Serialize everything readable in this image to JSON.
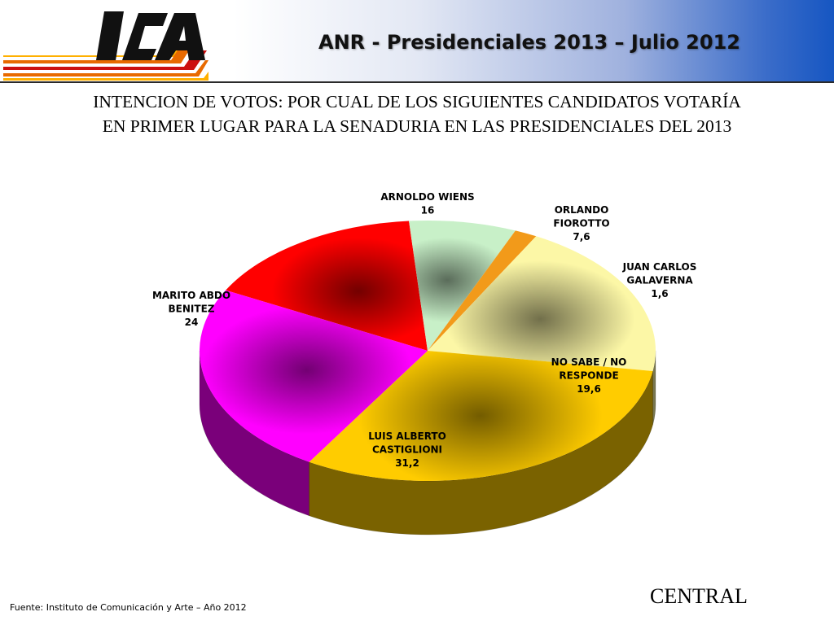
{
  "header": {
    "title": "ANR - Presidenciales 2013 – Julio 2012"
  },
  "subtitle": {
    "line1": "INTENCION DE VOTOS: POR CUAL DE LOS SIGUIENTES CANDIDATOS VOTARÍA",
    "line2": "EN PRIMER LUGAR PARA LA SENADURIA EN LAS PRESIDENCIALES DEL 2013"
  },
  "logo": {
    "text": "ICA"
  },
  "chart_data": {
    "type": "pie",
    "title": "",
    "slices": [
      {
        "label_lines": [
          "ARNOLDO WIENS"
        ],
        "value": 16,
        "value_text": "16",
        "color": "#ff0000"
      },
      {
        "label_lines": [
          "ORLANDO",
          "FIOROTTO"
        ],
        "value": 7.6,
        "value_text": "7,6",
        "color": "#c8f0c8"
      },
      {
        "label_lines": [
          "JUAN CARLOS",
          "GALAVERNA"
        ],
        "value": 1.6,
        "value_text": "1,6",
        "color": "#f29a1a"
      },
      {
        "label_lines": [
          "NO SABE / NO",
          "RESPONDE"
        ],
        "value": 19.6,
        "value_text": "19,6",
        "color": "#fcf7a6"
      },
      {
        "label_lines": [
          "LUIS ALBERTO",
          "CASTIGLIONI"
        ],
        "value": 31.2,
        "value_text": "31,2",
        "color": "#ffcc00"
      },
      {
        "label_lines": [
          "MARITO ABDO",
          "BENITEZ"
        ],
        "value": 24,
        "value_text": "24",
        "color": "#ff00ff"
      }
    ]
  },
  "footer": {
    "source": "Fuente: Instituto de Comunicación y Arte – Año 2012",
    "region": "CENTRAL"
  }
}
